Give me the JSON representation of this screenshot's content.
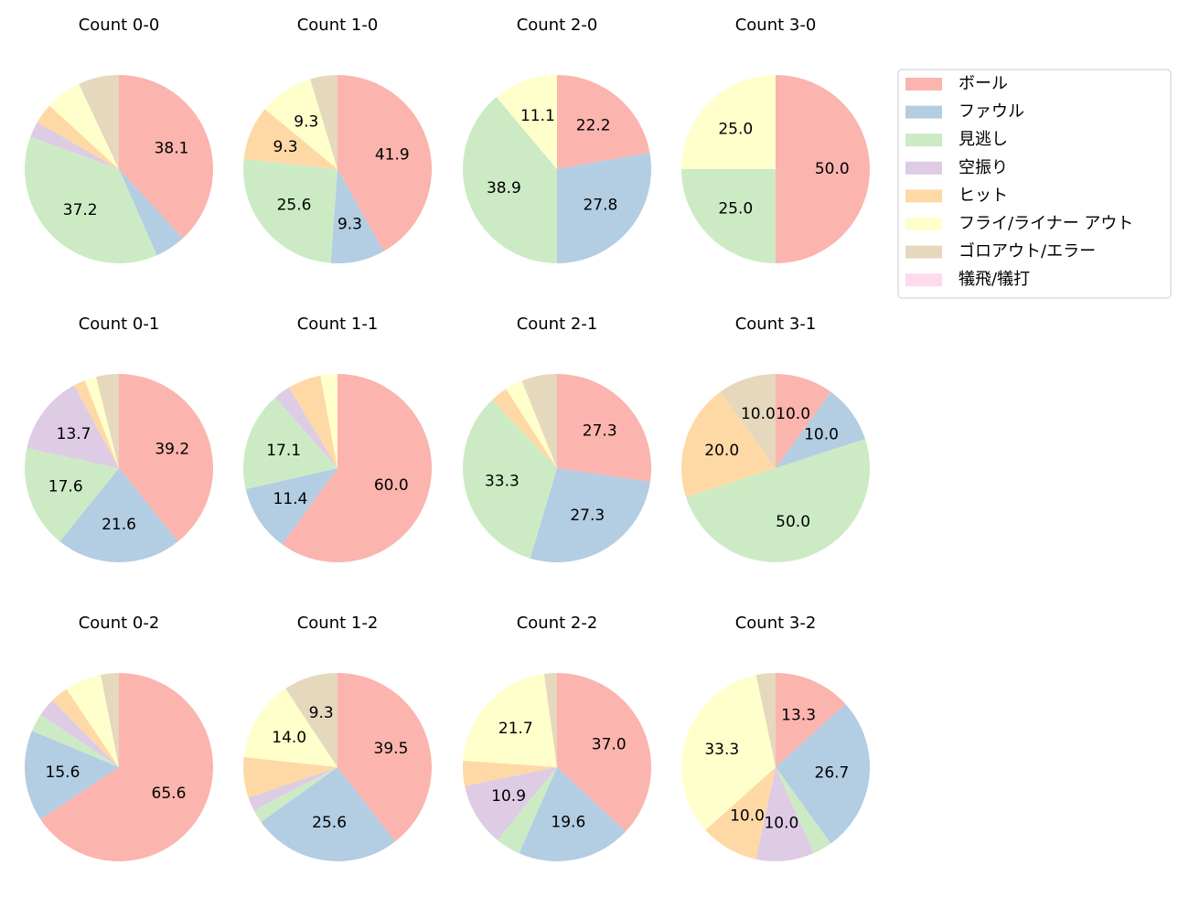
{
  "legend": {
    "labels": [
      "ボール",
      "ファウル",
      "見逃し",
      "空振り",
      "ヒット",
      "フライ/ライナー アウト",
      "ゴロアウト/エラー",
      "犠飛/犠打"
    ],
    "colors": [
      "#fbb4ae",
      "#b3cde3",
      "#ccebc5",
      "#decbe4",
      "#fed9a6",
      "#ffffcc",
      "#e5d8bd",
      "#fddaec"
    ]
  },
  "chart_data": [
    {
      "type": "pie",
      "title": "Count 0-0",
      "values": [
        38.1,
        5.3,
        37.2,
        2.7,
        3.5,
        6.2,
        7.0,
        0
      ],
      "value_labels": [
        "38.1",
        null,
        "37.2",
        null,
        null,
        null,
        null,
        null
      ]
    },
    {
      "type": "pie",
      "title": "Count 1-0",
      "values": [
        41.9,
        9.3,
        25.6,
        0,
        9.3,
        9.3,
        4.7,
        0
      ],
      "value_labels": [
        "41.9",
        "9.3",
        "25.6",
        null,
        "9.3",
        "9.3",
        null,
        null
      ]
    },
    {
      "type": "pie",
      "title": "Count 2-0",
      "values": [
        22.2,
        27.8,
        38.9,
        0,
        0,
        11.1,
        0,
        0
      ],
      "value_labels": [
        "22.2",
        "27.8",
        "38.9",
        null,
        null,
        "11.1",
        null,
        null
      ]
    },
    {
      "type": "pie",
      "title": "Count 3-0",
      "values": [
        50,
        0,
        25,
        0,
        0,
        25,
        0,
        0
      ],
      "value_labels": [
        "50.0",
        null,
        "25.0",
        null,
        null,
        "25.0",
        null,
        null
      ]
    },
    {
      "type": "pie",
      "title": "Count 0-1",
      "values": [
        39.2,
        21.6,
        17.6,
        13.7,
        2.0,
        2.0,
        3.9,
        0
      ],
      "value_labels": [
        "39.2",
        "21.6",
        "17.6",
        "13.7",
        null,
        null,
        null,
        null
      ]
    },
    {
      "type": "pie",
      "title": "Count 1-1",
      "values": [
        60,
        11.4,
        17.1,
        2.9,
        5.7,
        2.9,
        0,
        0
      ],
      "value_labels": [
        "60.0",
        "11.4",
        "17.1",
        null,
        null,
        null,
        null,
        null
      ]
    },
    {
      "type": "pie",
      "title": "Count 2-1",
      "values": [
        27.3,
        27.3,
        33.3,
        0,
        3.0,
        3.0,
        6.1,
        0
      ],
      "value_labels": [
        "27.3",
        "27.3",
        "33.3",
        null,
        null,
        null,
        null,
        null
      ]
    },
    {
      "type": "pie",
      "title": "Count 3-1",
      "values": [
        10,
        10,
        50,
        0,
        20,
        0,
        10,
        0
      ],
      "value_labels": [
        "10.0",
        "10.0",
        "50.0",
        null,
        "20.0",
        null,
        "10.0",
        null
      ]
    },
    {
      "type": "pie",
      "title": "Count 0-2",
      "values": [
        65.6,
        15.6,
        3.1,
        3.1,
        3.1,
        6.3,
        3.1,
        0
      ],
      "value_labels": [
        "65.6",
        "15.6",
        null,
        null,
        null,
        null,
        null,
        null
      ]
    },
    {
      "type": "pie",
      "title": "Count 1-2",
      "values": [
        39.5,
        25.6,
        2.3,
        2.3,
        7.0,
        14.0,
        9.3,
        0
      ],
      "value_labels": [
        "39.5",
        "25.6",
        null,
        null,
        null,
        "14.0",
        "9.3",
        null
      ]
    },
    {
      "type": "pie",
      "title": "Count 2-2",
      "values": [
        37.0,
        19.6,
        4.3,
        10.9,
        4.3,
        21.7,
        2.2,
        0
      ],
      "value_labels": [
        "37.0",
        "19.6",
        null,
        "10.9",
        null,
        "21.7",
        null,
        null
      ]
    },
    {
      "type": "pie",
      "title": "Count 3-2",
      "values": [
        13.3,
        26.7,
        3.3,
        10.0,
        10.0,
        33.3,
        3.3,
        0
      ],
      "value_labels": [
        "13.3",
        "26.7",
        null,
        "10.0",
        "10.0",
        "33.3",
        null,
        null
      ]
    }
  ]
}
